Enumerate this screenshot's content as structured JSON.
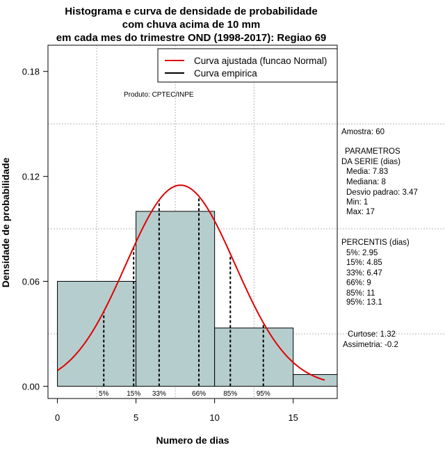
{
  "chart_data": {
    "type": "histogram",
    "title_lines": [
      "Histograma e curva de densidade de probabilidade",
      "com chuva acima de 10 mm",
      "em cada mes do trimestre OND (1998-2017): Regiao 69"
    ],
    "xlabel": "Numero de dias",
    "ylabel": "Densidade de probabilidade",
    "xlim": [
      -0.6,
      17.8
    ],
    "ylim": [
      -0.007,
      0.195
    ],
    "x_ticks": [
      0,
      5,
      10,
      15
    ],
    "y_ticks": [
      0.0,
      0.06,
      0.12,
      0.18
    ],
    "y_tick_labels": [
      "0.00",
      "0.06",
      "0.12",
      "0.18"
    ],
    "grid": true,
    "bars": [
      {
        "x0": 0,
        "x1": 5,
        "density": 0.06
      },
      {
        "x0": 5,
        "x1": 10,
        "density": 0.1
      },
      {
        "x0": 10,
        "x1": 15,
        "density": 0.0333
      },
      {
        "x0": 15,
        "x1": 17.8,
        "density": 0.0067
      }
    ],
    "normal_curve": {
      "mean": 7.83,
      "sd": 3.47,
      "x_range": [
        0,
        17
      ]
    },
    "percentiles": [
      {
        "label": "5%",
        "x": 2.95
      },
      {
        "label": "15%",
        "x": 4.85
      },
      {
        "label": "33%",
        "x": 6.47
      },
      {
        "label": "66%",
        "x": 9
      },
      {
        "label": "85%",
        "x": 11
      },
      {
        "label": "95%",
        "x": 13.1
      }
    ],
    "legend": {
      "position": "top-right",
      "entries": [
        {
          "label": "Curva ajustada (funcao Normal)",
          "color": "#e00000"
        },
        {
          "label": "Curva empirica",
          "color": "#000000"
        }
      ]
    },
    "product_label": "Produto: CPTEC/INPE",
    "side_panel": [
      "Amostra: 60",
      "PARAMETROS",
      "DA SERIE (dias)",
      "Media: 7.83",
      "Mediana: 8",
      "Desvio padrao: 3.47",
      "Min: 1",
      "Max: 17",
      "PERCENTIS (dias)",
      "5%: 2.95",
      "15%: 4.85",
      "33%: 6.47",
      "66%: 9",
      "85%: 11",
      "95%: 13.1",
      "Curtose: 1.32",
      "Assimetria: -0.2"
    ]
  },
  "colors": {
    "bar_fill": "#b6cdcd",
    "curve": "#e00000",
    "grid": "#b4b4b4"
  }
}
